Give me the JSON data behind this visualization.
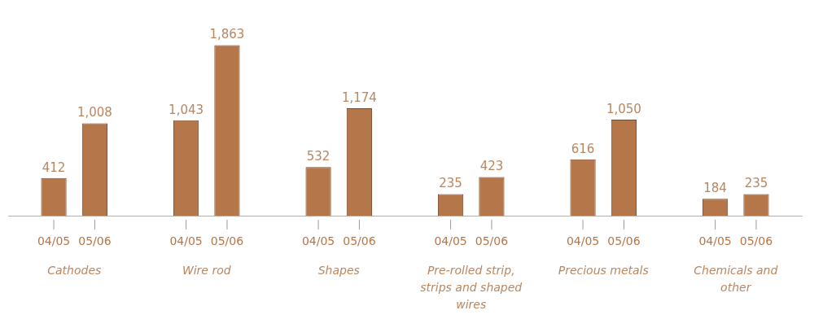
{
  "chart_data": {
    "type": "bar",
    "categories": [
      "Cathodes",
      "Wire rod",
      "Shapes",
      "Pre-rolled strip, strips and shaped wires",
      "Precious metals",
      "Chemicals and other"
    ],
    "series": [
      {
        "name": "04/05",
        "color": "#b5764a",
        "values": [
          412,
          1043,
          532,
          235,
          616,
          184
        ],
        "value_labels": [
          "412",
          "1,043",
          "532",
          "235",
          "616",
          "184"
        ]
      },
      {
        "name": "05/06",
        "color": "#b5764a",
        "values": [
          1008,
          1863,
          1174,
          423,
          1050,
          235
        ],
        "value_labels": [
          "1,008",
          "1,863",
          "1,174",
          "423",
          "1,050",
          "235"
        ]
      }
    ],
    "tick_labels": "x"
  }
}
